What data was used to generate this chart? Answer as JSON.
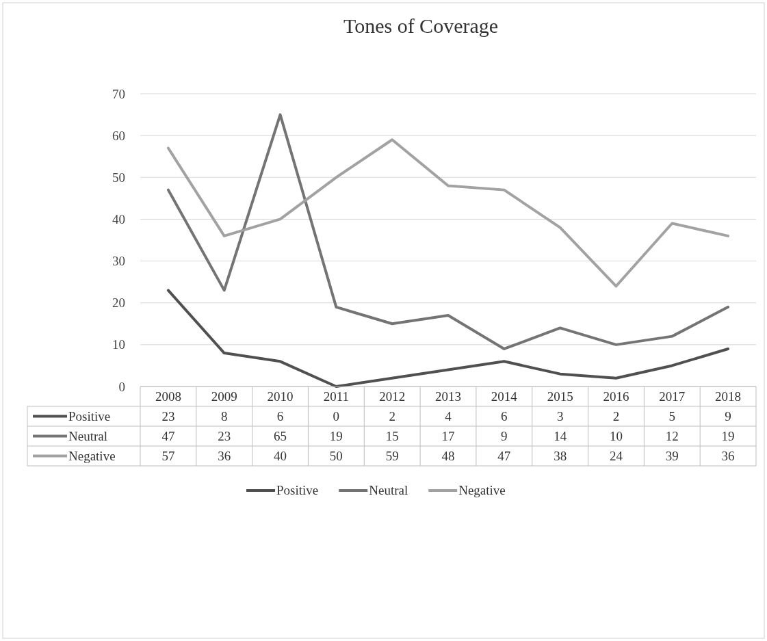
{
  "chart_data": {
    "type": "line",
    "title": "Tones of Coverage",
    "categories": [
      "2008",
      "2009",
      "2010",
      "2011",
      "2012",
      "2013",
      "2014",
      "2015",
      "2016",
      "2017",
      "2018"
    ],
    "series": [
      {
        "name": "Positive",
        "color": "#505050",
        "values": [
          23,
          8,
          6,
          0,
          2,
          4,
          6,
          3,
          2,
          5,
          9
        ]
      },
      {
        "name": "Neutral",
        "color": "#747474",
        "values": [
          47,
          23,
          65,
          19,
          15,
          17,
          9,
          14,
          10,
          12,
          19
        ]
      },
      {
        "name": "Negative",
        "color": "#a2a2a2",
        "values": [
          57,
          36,
          40,
          50,
          59,
          48,
          47,
          38,
          24,
          39,
          36
        ]
      }
    ],
    "ylim": [
      0,
      70
    ],
    "yticks": [
      0,
      10,
      20,
      30,
      40,
      50,
      60,
      70
    ],
    "grid": "y",
    "legend": "bottom",
    "data_labels": true,
    "marker": "none",
    "line_style": "solid"
  }
}
